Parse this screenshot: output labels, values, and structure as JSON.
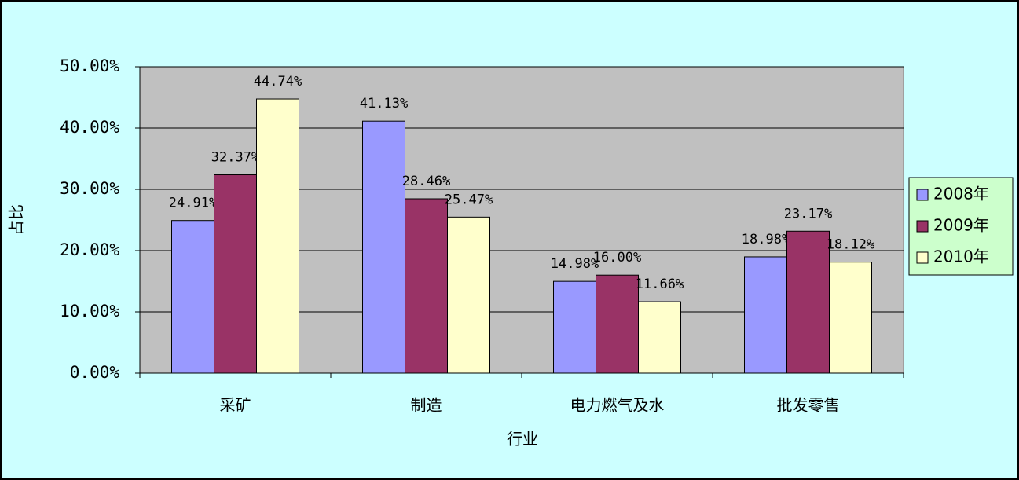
{
  "chart_data": {
    "type": "bar",
    "x_label": "行业",
    "y_label": "占比",
    "categories": [
      "采矿",
      "制造",
      "电力燃气及水",
      "批发零售"
    ],
    "series": [
      {
        "name": "2008年",
        "color": "#9999ff",
        "values": [
          24.91,
          41.13,
          14.98,
          18.98
        ],
        "value_labels": [
          "24.91%",
          "41.13%",
          "14.98%",
          "18.98%"
        ]
      },
      {
        "name": "2009年",
        "color": "#993366",
        "values": [
          32.37,
          28.46,
          16.0,
          23.17
        ],
        "value_labels": [
          "32.37%",
          "28.46%",
          "16.00%",
          "23.17%"
        ]
      },
      {
        "name": "2010年",
        "color": "#ffffcc",
        "values": [
          44.74,
          25.47,
          11.66,
          18.12
        ],
        "value_labels": [
          "44.74%",
          "25.47%",
          "11.66%",
          "18.12%"
        ]
      }
    ],
    "ylim": [
      0,
      50
    ],
    "yticks": [
      {
        "value": 0,
        "label": "0.00%"
      },
      {
        "value": 10,
        "label": "10.00%"
      },
      {
        "value": 20,
        "label": "20.00%"
      },
      {
        "value": 30,
        "label": "30.00%"
      },
      {
        "value": 40,
        "label": "40.00%"
      },
      {
        "value": 50,
        "label": "50.00%"
      }
    ],
    "grid": true,
    "legend": "right"
  }
}
